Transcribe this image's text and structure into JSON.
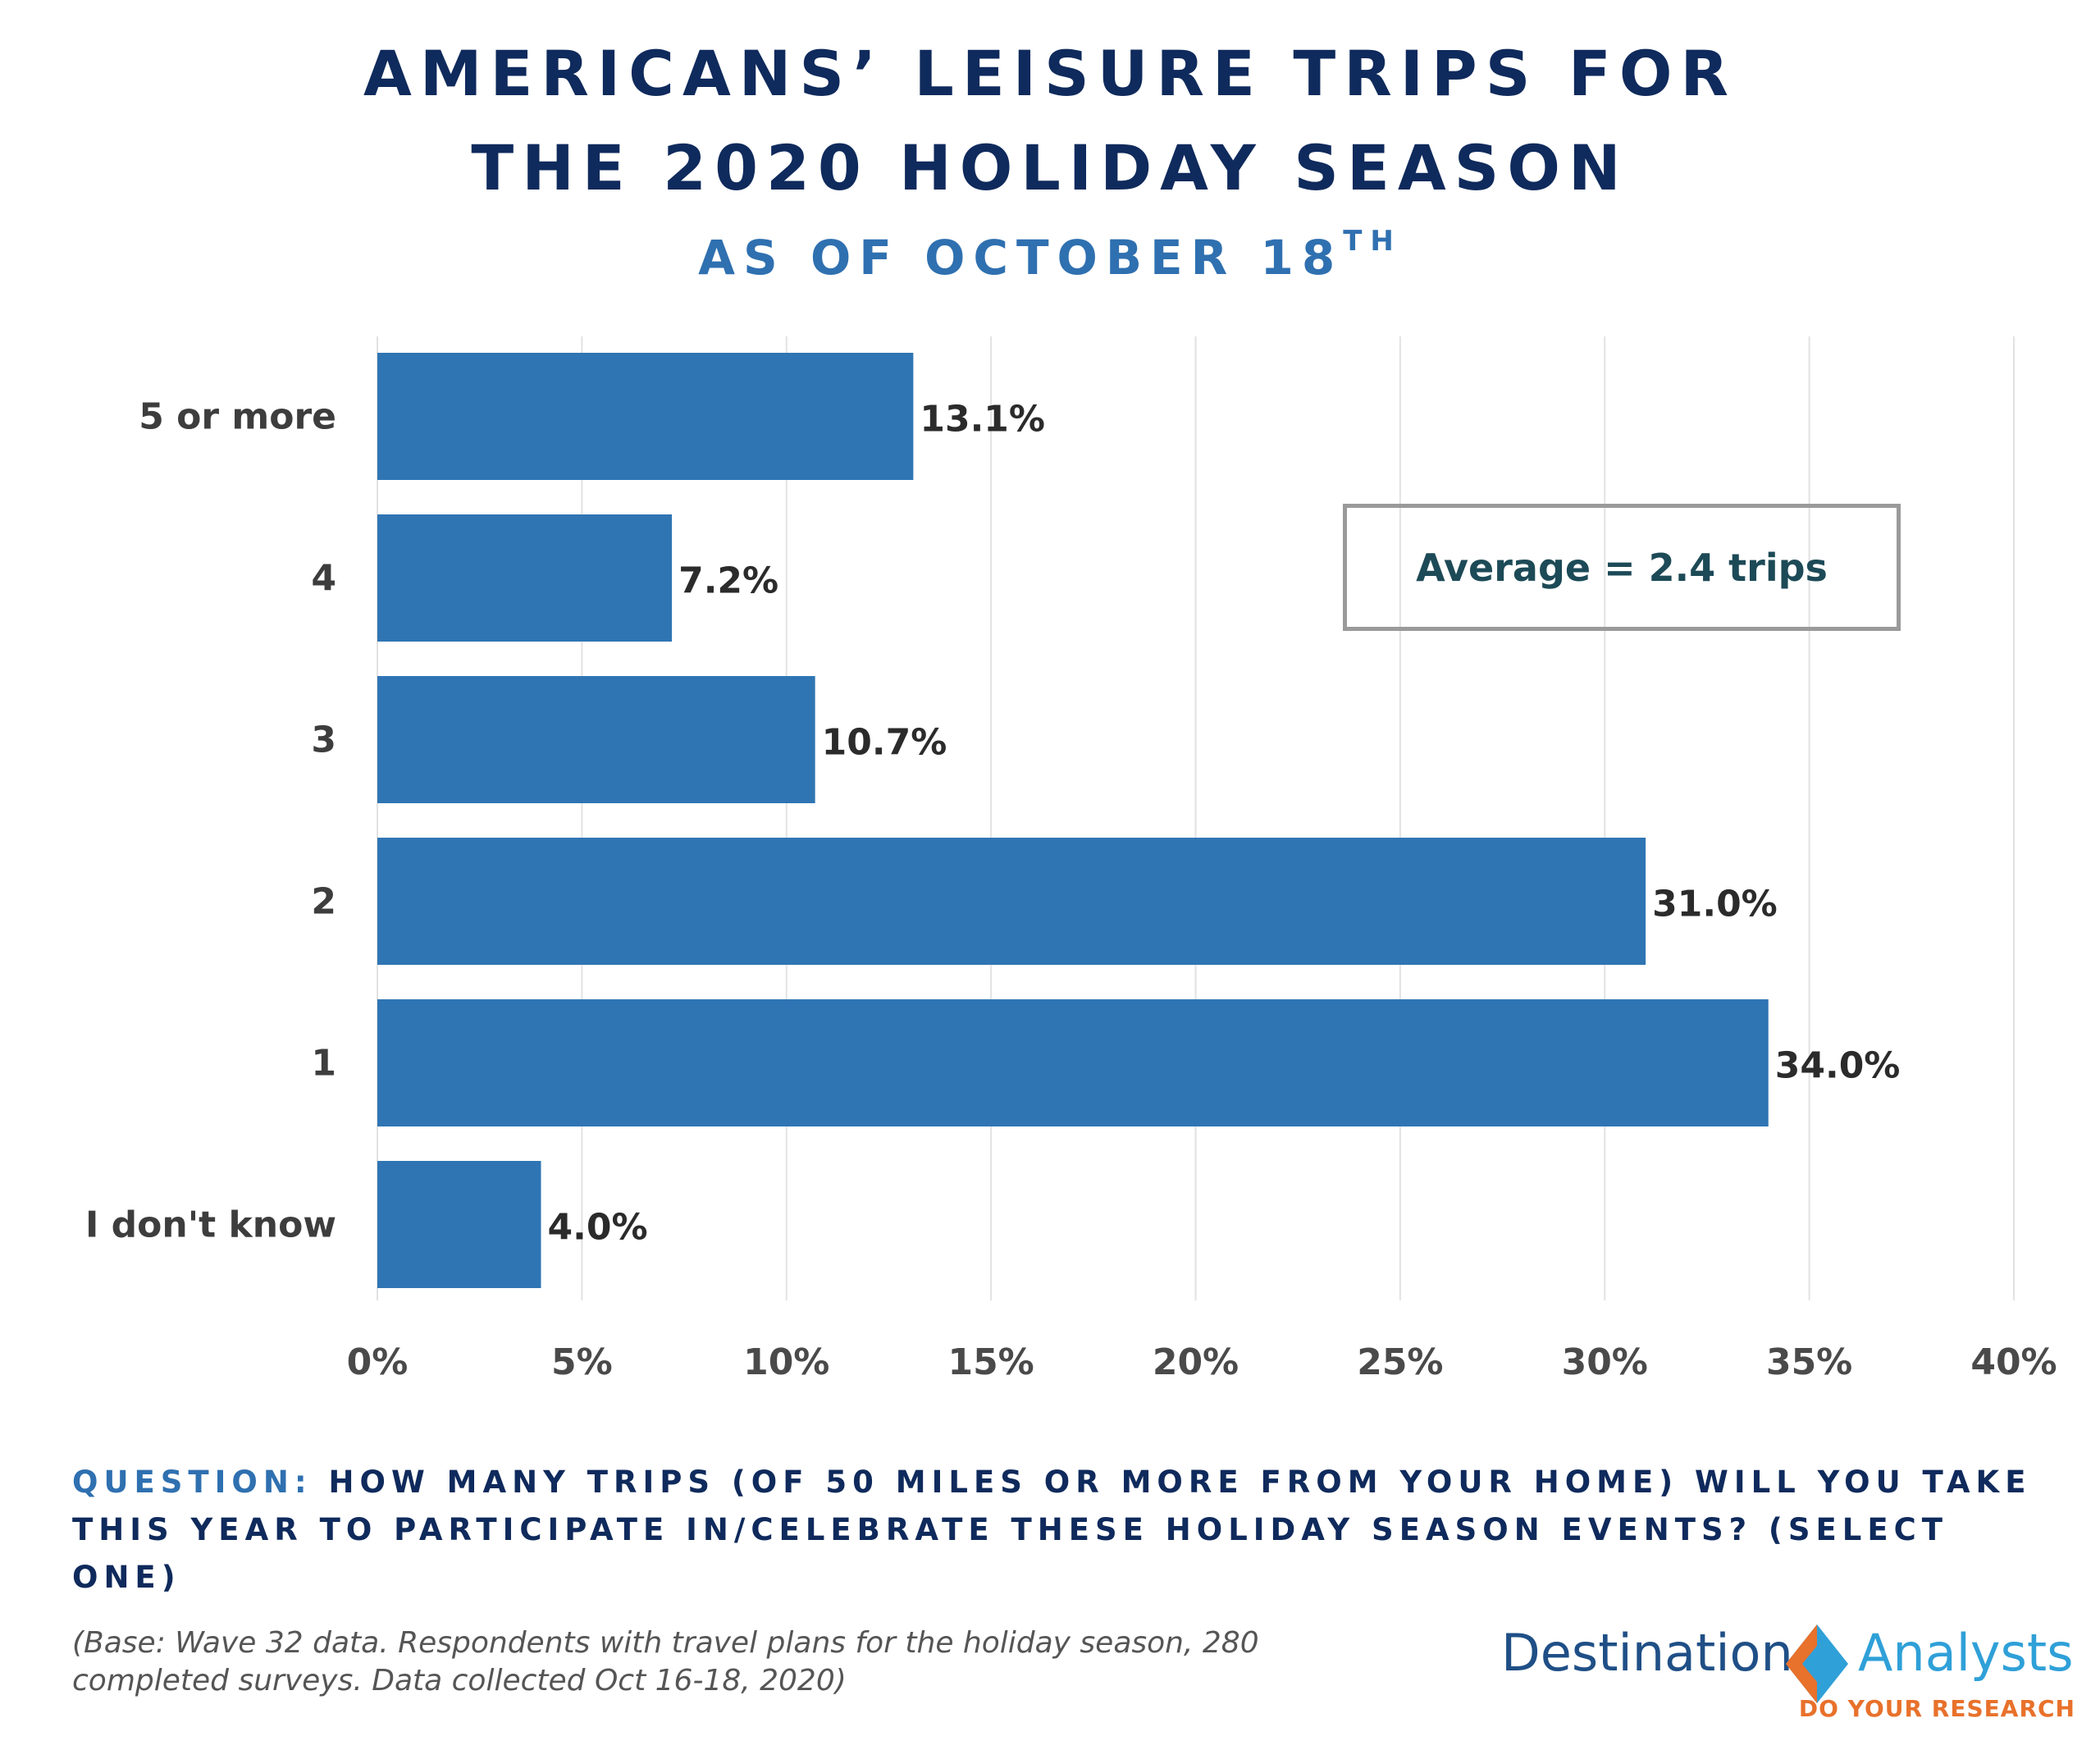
{
  "header": {
    "title_line1": "AMERICANS’ LEISURE TRIPS FOR",
    "title_line2": "THE 2020 HOLIDAY SEASON",
    "subtitle": "AS OF OCTOBER 18",
    "subtitle_sup": "TH"
  },
  "chart_data": {
    "type": "bar",
    "orientation": "horizontal",
    "categories": [
      "5 or more",
      "4",
      "3",
      "2",
      "1",
      "I don't know"
    ],
    "values": [
      13.1,
      7.2,
      10.7,
      31.0,
      34.0,
      4.0
    ],
    "value_labels": [
      "13.1%",
      "7.2%",
      "10.7%",
      "31.0%",
      "34.0%",
      "4.0%"
    ],
    "x_ticks": [
      "0%",
      "5%",
      "10%",
      "15%",
      "20%",
      "25%",
      "30%",
      "35%",
      "40%"
    ],
    "xlim": [
      0,
      40
    ],
    "grid": true,
    "bar_color": "#2f75b3"
  },
  "annotation": {
    "text": "Average = 2.4 trips"
  },
  "question": {
    "label": "QUESTION:",
    "text": " HOW MANY TRIPS (OF 50 MILES OR MORE FROM YOUR HOME) WILL YOU TAKE THIS YEAR TO PARTICIPATE IN/CELEBRATE THESE HOLIDAY SEASON EVENTS? (SELECT ONE)"
  },
  "footnote": "(Base: Wave 32 data. Respondents with travel plans for the holiday season, 280 completed surveys. Data collected Oct 16-18, 2020)",
  "logo": {
    "word1": "Destination",
    "word2": "Analysts",
    "tagline": "DO YOUR RESEARCH"
  }
}
